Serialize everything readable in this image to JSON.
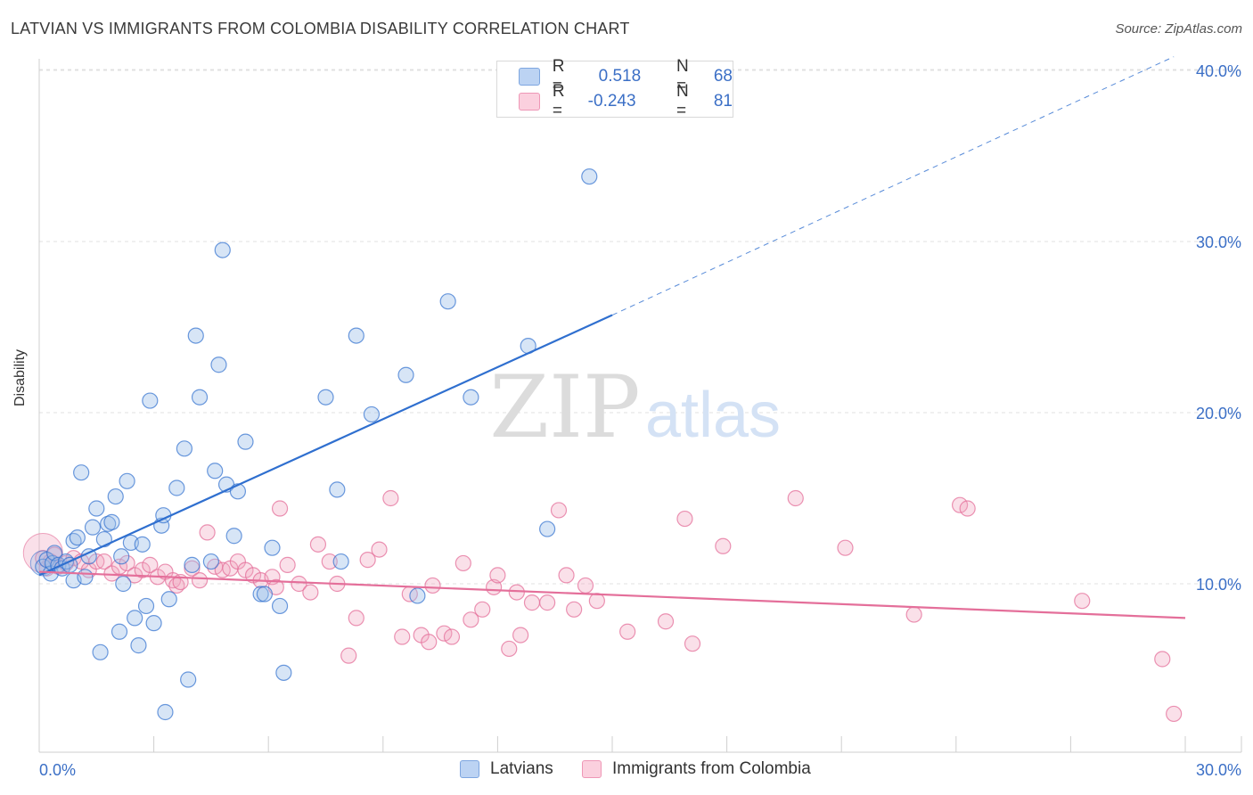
{
  "title": "LATVIAN VS IMMIGRANTS FROM COLOMBIA DISABILITY CORRELATION CHART",
  "source": "Source: ZipAtlas.com",
  "legend_stats": [
    {
      "r_label": "R =",
      "r_value": "0.518",
      "n_label": "N =",
      "n_value": "68"
    },
    {
      "r_label": "R =",
      "r_value": "-0.243",
      "n_label": "N =",
      "n_value": "81"
    }
  ],
  "bottom_legend": [
    "Latvians",
    "Immigrants from Colombia"
  ],
  "colors": {
    "latvians": "#9bbde9",
    "latvians_line": "#2f6fcf",
    "colombia": "#f2a6c0",
    "colombia_line": "#e46f9a",
    "tick_text": "#3b6fc6"
  },
  "chart_data": {
    "type": "scatter",
    "ylabel": "Disability",
    "x_tick_labels": [
      "0.0%",
      "30.0%"
    ],
    "y_tick_labels": [
      "10.0%",
      "20.0%",
      "30.0%",
      "40.0%"
    ],
    "y_ticks": [
      10,
      20,
      30,
      40
    ],
    "xlim": [
      0,
      31
    ],
    "ylim": [
      1,
      41
    ],
    "series": [
      {
        "name": "Latvians",
        "points": [
          [
            0.1,
            11.0
          ],
          [
            0.2,
            11.4
          ],
          [
            0.3,
            10.6
          ],
          [
            0.35,
            11.2
          ],
          [
            0.4,
            11.8
          ],
          [
            0.5,
            11.1
          ],
          [
            0.6,
            10.9
          ],
          [
            0.7,
            11.3
          ],
          [
            0.8,
            11.1
          ],
          [
            0.9,
            10.2
          ],
          [
            0.9,
            12.5
          ],
          [
            1.0,
            12.7
          ],
          [
            1.1,
            16.5
          ],
          [
            1.2,
            10.4
          ],
          [
            1.3,
            11.6
          ],
          [
            1.4,
            13.3
          ],
          [
            1.5,
            14.4
          ],
          [
            1.6,
            6.0
          ],
          [
            1.7,
            12.6
          ],
          [
            1.8,
            13.5
          ],
          [
            1.9,
            13.6
          ],
          [
            2.0,
            15.1
          ],
          [
            2.1,
            7.2
          ],
          [
            2.15,
            11.6
          ],
          [
            2.2,
            10.0
          ],
          [
            2.3,
            16.0
          ],
          [
            2.4,
            12.4
          ],
          [
            2.5,
            8.0
          ],
          [
            2.6,
            6.4
          ],
          [
            2.7,
            12.3
          ],
          [
            2.8,
            8.7
          ],
          [
            2.9,
            20.7
          ],
          [
            3.0,
            7.7
          ],
          [
            3.2,
            13.4
          ],
          [
            3.25,
            14.0
          ],
          [
            3.3,
            2.5
          ],
          [
            3.4,
            9.1
          ],
          [
            3.6,
            15.6
          ],
          [
            3.8,
            17.9
          ],
          [
            3.9,
            4.4
          ],
          [
            4.0,
            11.1
          ],
          [
            4.1,
            24.5
          ],
          [
            4.2,
            20.9
          ],
          [
            4.5,
            11.3
          ],
          [
            4.6,
            16.6
          ],
          [
            4.7,
            22.8
          ],
          [
            4.8,
            29.5
          ],
          [
            4.9,
            15.8
          ],
          [
            5.1,
            12.8
          ],
          [
            5.2,
            15.4
          ],
          [
            5.4,
            18.3
          ],
          [
            5.8,
            9.4
          ],
          [
            5.9,
            9.4
          ],
          [
            6.1,
            12.1
          ],
          [
            6.3,
            8.7
          ],
          [
            6.4,
            4.8
          ],
          [
            7.5,
            20.9
          ],
          [
            7.8,
            15.5
          ],
          [
            7.9,
            11.3
          ],
          [
            8.3,
            24.5
          ],
          [
            8.7,
            19.9
          ],
          [
            9.6,
            22.2
          ],
          [
            9.9,
            9.3
          ],
          [
            10.7,
            26.5
          ],
          [
            11.3,
            20.9
          ],
          [
            12.8,
            23.9
          ],
          [
            13.3,
            13.2
          ],
          [
            14.4,
            33.8
          ]
        ]
      },
      {
        "name": "Immigrants from Colombia",
        "points": [
          [
            0.1,
            11.5
          ],
          [
            0.2,
            10.9
          ],
          [
            0.3,
            11.3
          ],
          [
            0.4,
            11.7
          ],
          [
            0.5,
            11.0
          ],
          [
            0.7,
            11.2
          ],
          [
            0.9,
            11.5
          ],
          [
            1.1,
            11.3
          ],
          [
            1.3,
            10.8
          ],
          [
            1.5,
            11.3
          ],
          [
            1.7,
            11.3
          ],
          [
            1.9,
            10.6
          ],
          [
            2.1,
            11.0
          ],
          [
            2.3,
            11.2
          ],
          [
            2.5,
            10.5
          ],
          [
            2.7,
            10.8
          ],
          [
            2.9,
            11.1
          ],
          [
            3.1,
            10.4
          ],
          [
            3.3,
            10.7
          ],
          [
            3.5,
            10.2
          ],
          [
            3.6,
            9.9
          ],
          [
            3.7,
            10.1
          ],
          [
            4.0,
            10.9
          ],
          [
            4.2,
            10.2
          ],
          [
            4.4,
            13.0
          ],
          [
            4.6,
            11.0
          ],
          [
            4.8,
            10.8
          ],
          [
            5.0,
            10.9
          ],
          [
            5.2,
            11.3
          ],
          [
            5.4,
            10.8
          ],
          [
            5.6,
            10.5
          ],
          [
            5.8,
            10.2
          ],
          [
            6.1,
            10.4
          ],
          [
            6.2,
            9.8
          ],
          [
            6.3,
            14.4
          ],
          [
            6.5,
            11.1
          ],
          [
            6.8,
            10.0
          ],
          [
            7.1,
            9.5
          ],
          [
            7.3,
            12.3
          ],
          [
            7.6,
            11.3
          ],
          [
            7.8,
            10.0
          ],
          [
            8.1,
            5.8
          ],
          [
            8.3,
            8.0
          ],
          [
            8.6,
            11.4
          ],
          [
            8.9,
            12.0
          ],
          [
            9.2,
            15.0
          ],
          [
            9.5,
            6.9
          ],
          [
            9.7,
            9.4
          ],
          [
            10.0,
            7.0
          ],
          [
            10.2,
            6.6
          ],
          [
            10.3,
            9.9
          ],
          [
            10.6,
            7.1
          ],
          [
            10.8,
            6.9
          ],
          [
            11.1,
            11.2
          ],
          [
            11.3,
            7.9
          ],
          [
            11.6,
            8.5
          ],
          [
            11.9,
            9.8
          ],
          [
            12.0,
            10.5
          ],
          [
            12.3,
            6.2
          ],
          [
            12.5,
            9.5
          ],
          [
            12.6,
            7.0
          ],
          [
            12.9,
            8.9
          ],
          [
            13.3,
            8.9
          ],
          [
            13.6,
            14.3
          ],
          [
            13.8,
            10.5
          ],
          [
            14.0,
            8.5
          ],
          [
            14.3,
            9.9
          ],
          [
            14.6,
            9.0
          ],
          [
            15.4,
            7.2
          ],
          [
            16.4,
            7.8
          ],
          [
            16.9,
            13.8
          ],
          [
            17.1,
            6.5
          ],
          [
            17.9,
            12.2
          ],
          [
            19.8,
            15.0
          ],
          [
            21.1,
            12.1
          ],
          [
            22.9,
            8.2
          ],
          [
            24.1,
            14.6
          ],
          [
            24.3,
            14.4
          ],
          [
            27.3,
            9.0
          ],
          [
            29.4,
            5.6
          ],
          [
            29.7,
            2.4
          ]
        ]
      }
    ],
    "trend_lines": [
      {
        "series": "Latvians",
        "x": [
          0,
          15
        ],
        "y": [
          10.5,
          25.7
        ],
        "extended_x": [
          15,
          29.7
        ],
        "extended_y": [
          25.7,
          40.8
        ]
      },
      {
        "series": "Immigrants from Colombia",
        "x": [
          0,
          30
        ],
        "y": [
          10.7,
          8.0
        ]
      }
    ]
  }
}
